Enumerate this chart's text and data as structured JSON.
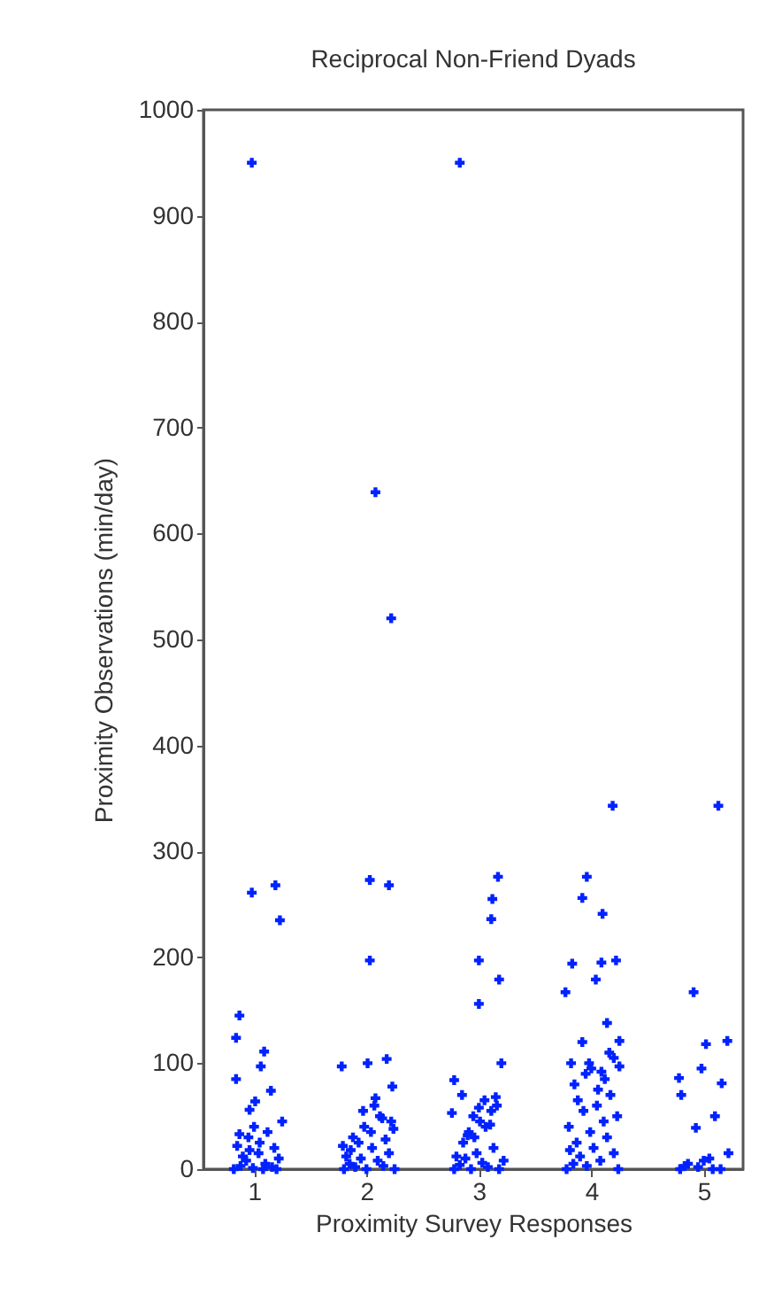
{
  "chart_data": {
    "type": "scatter",
    "title": "Reciprocal Non-Friend Dyads",
    "xlabel": "Proximity Survey Responses",
    "ylabel": "Proximity Observations (min/day)",
    "xlim": [
      0.55,
      5.35
    ],
    "ylim": [
      0,
      1000
    ],
    "xticks": [
      1,
      2,
      3,
      4,
      5
    ],
    "yticks": [
      0,
      100,
      200,
      300,
      400,
      500,
      600,
      700,
      800,
      900,
      {
        "value": 1000,
        "label": "1000"
      }
    ],
    "marker": "cross",
    "series": [
      {
        "color": "#0022ff",
        "x": [
          0.98,
          0.98,
          1.19,
          1.23,
          0.87,
          0.84,
          1.09,
          1.06,
          0.84,
          1.15,
          1.01,
          0.96,
          1.25,
          0.82,
          0.88,
          0.93,
          0.99,
          1.04,
          1.1,
          1.16,
          1.22,
          0.85,
          0.95,
          1.05,
          1.18,
          0.9,
          1.12,
          1.0,
          0.87,
          1.2,
          1.08,
          0.96,
          2.83,
          2.08,
          2.22,
          2.03,
          2.2,
          2.03,
          1.78,
          2.01,
          2.18,
          2.23,
          2.08,
          1.8,
          1.85,
          1.9,
          1.95,
          2.0,
          2.05,
          2.1,
          2.15,
          2.2,
          2.25,
          1.82,
          1.88,
          1.93,
          1.98,
          2.04,
          2.12,
          2.17,
          2.22,
          1.86,
          1.97,
          2.07,
          2.14,
          1.79,
          2.24,
          3.17,
          3.12,
          3.11,
          3.0,
          3.18,
          3.0,
          3.2,
          2.78,
          2.76,
          2.78,
          2.83,
          2.88,
          2.93,
          2.98,
          3.03,
          3.08,
          3.13,
          3.18,
          3.22,
          2.8,
          2.86,
          2.91,
          2.96,
          3.01,
          3.06,
          3.11,
          3.16,
          2.85,
          2.95,
          3.05,
          3.15,
          2.9,
          3.0,
          3.1,
          4.19,
          3.96,
          3.92,
          4.1,
          4.22,
          4.09,
          3.83,
          4.04,
          3.77,
          4.14,
          3.92,
          4.25,
          3.82,
          4.25,
          4.09,
          3.78,
          3.84,
          3.9,
          3.96,
          4.02,
          4.08,
          4.14,
          4.2,
          4.24,
          3.8,
          3.87,
          3.93,
          3.99,
          4.05,
          4.11,
          4.17,
          4.23,
          3.85,
          3.95,
          4.06,
          4.16,
          3.88,
          3.98,
          4.12,
          4.2,
          3.81,
          4.0,
          5.13,
          4.91,
          5.02,
          5.21,
          4.98,
          5.16,
          4.78,
          4.8,
          5.1,
          4.93,
          4.79,
          4.86,
          4.95,
          5.05,
          5.15,
          5.22,
          4.83,
          5.0,
          5.08
        ],
        "values": [
          950,
          261,
          268,
          235,
          145,
          124,
          111,
          97,
          85,
          74,
          64,
          56,
          45,
          0,
          3,
          8,
          1,
          15,
          5,
          2,
          10,
          22,
          30,
          25,
          20,
          12,
          35,
          40,
          33,
          0,
          0,
          18,
          950,
          639,
          520,
          273,
          268,
          197,
          97,
          100,
          104,
          78,
          67,
          0,
          5,
          2,
          10,
          0,
          20,
          8,
          3,
          15,
          0,
          12,
          30,
          25,
          40,
          35,
          50,
          28,
          45,
          18,
          55,
          60,
          48,
          22,
          38,
          276,
          255,
          236,
          197,
          179,
          156,
          100,
          84,
          53,
          0,
          4,
          10,
          0,
          15,
          6,
          2,
          20,
          0,
          8,
          12,
          25,
          35,
          30,
          45,
          40,
          55,
          60,
          70,
          50,
          65,
          68,
          32,
          58,
          42,
          343,
          276,
          256,
          241,
          197,
          195,
          194,
          179,
          167,
          138,
          120,
          121,
          100,
          97,
          92,
          0,
          5,
          12,
          3,
          20,
          8,
          30,
          15,
          0,
          40,
          25,
          55,
          35,
          60,
          45,
          70,
          50,
          80,
          90,
          75,
          110,
          65,
          100,
          85,
          105,
          18,
          95,
          343,
          167,
          118,
          121,
          95,
          81,
          86,
          70,
          50,
          39,
          0,
          5,
          2,
          10,
          0,
          15,
          3,
          8,
          0
        ]
      }
    ]
  }
}
